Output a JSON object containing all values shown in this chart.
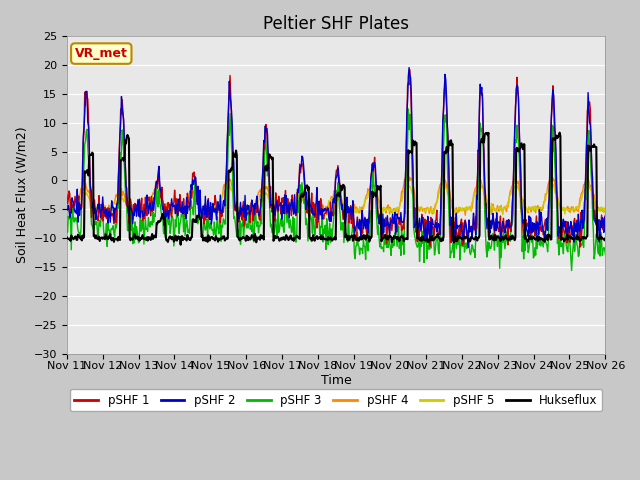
{
  "title": "Peltier SHF Plates",
  "xlabel": "Time",
  "ylabel": "Soil Heat Flux (W/m2)",
  "ylim": [
    -30,
    25
  ],
  "xlim": [
    0,
    360
  ],
  "x_tick_labels": [
    "Nov 11",
    "Nov 12",
    "Nov 13",
    "Nov 14",
    "Nov 15",
    "Nov 16",
    "Nov 17",
    "Nov 18",
    "Nov 19",
    "Nov 20",
    "Nov 21",
    "Nov 22",
    "Nov 23",
    "Nov 24",
    "Nov 25",
    "Nov 26"
  ],
  "x_tick_positions": [
    0,
    24,
    48,
    72,
    96,
    120,
    144,
    168,
    192,
    216,
    240,
    264,
    288,
    312,
    336,
    360
  ],
  "legend_labels": [
    "pSHF 1",
    "pSHF 2",
    "pSHF 3",
    "pSHF 4",
    "pSHF 5",
    "Hukseflux"
  ],
  "colors": {
    "pSHF1": "#cc0000",
    "pSHF2": "#0000cc",
    "pSHF3": "#00bb00",
    "pSHF4": "#ff8800",
    "pSHF5": "#cccc00",
    "Hukseflux": "#000000"
  },
  "annotation_text": "VR_met",
  "annotation_box_color": "#ffffcc",
  "annotation_box_edge_color": "#bb8800",
  "annotation_text_color": "#cc0000",
  "background_color": "#e8e8e8",
  "plot_bg_color": "#e8e8e8",
  "grid_color": "#ffffff",
  "title_fontsize": 12,
  "tick_fontsize": 8
}
